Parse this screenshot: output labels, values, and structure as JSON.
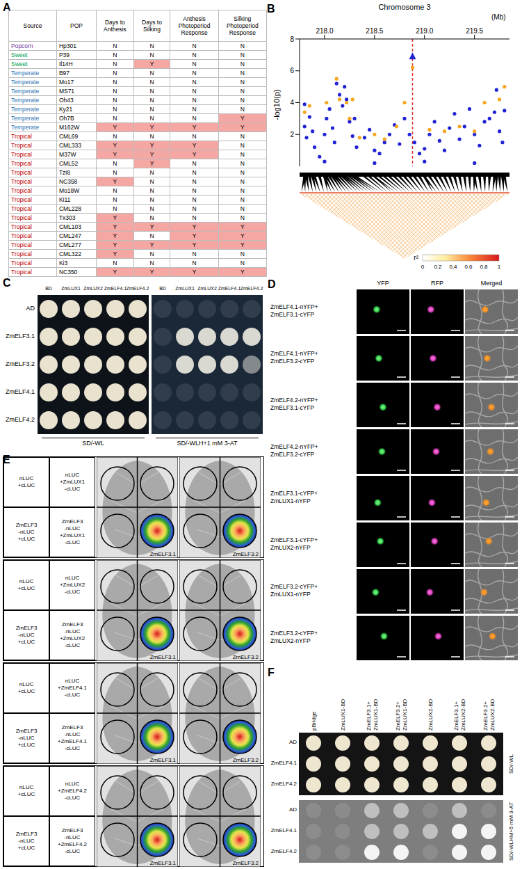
{
  "chart_data": {
    "type": "scatter",
    "letter": "B",
    "title": "Chromosome 3",
    "x_label": "(Mb)",
    "y_label": "-log10(p)",
    "xlim": [
      217.75,
      219.85
    ],
    "xticks": [
      {
        "value": 218,
        "label": "218.0"
      },
      {
        "value": 218.5,
        "label": "218.5"
      },
      {
        "value": 219,
        "label": "219.0"
      },
      {
        "value": 219.5,
        "label": "219.5"
      }
    ],
    "ylim": [
      0,
      8
    ],
    "yticks": [
      0,
      2,
      4,
      6,
      8
    ],
    "series": [
      {
        "color": "#2323d6",
        "marker": "circle",
        "x": [
          217.8,
          217.8,
          217.82,
          217.85,
          217.88,
          217.9,
          217.95,
          218.0,
          218.0,
          218.02,
          218.05,
          218.08,
          218.1,
          218.12,
          218.15,
          218.18,
          218.2,
          218.22,
          218.25,
          218.28,
          218.3,
          218.32,
          218.4,
          218.45,
          218.5,
          218.5,
          218.55,
          218.6,
          218.65,
          218.7,
          218.75,
          218.8,
          218.85,
          218.9,
          218.95,
          219.0,
          219.0,
          219.05,
          219.1,
          219.15,
          219.2,
          219.25,
          219.3,
          219.35,
          219.4,
          219.45,
          219.5,
          219.5,
          219.55,
          219.6,
          219.65,
          219.7,
          219.72,
          219.75,
          219.78,
          219.8
        ],
        "values": [
          3.9,
          2.5,
          1.8,
          3.1,
          2.2,
          1.2,
          0.6,
          2.0,
          0.3,
          3.0,
          3.6,
          2.4,
          1.5,
          5.2,
          4.5,
          3.8,
          5.0,
          4.2,
          2.8,
          1.9,
          3.0,
          1.2,
          1.8,
          2.3,
          1.0,
          0.2,
          0.8,
          1.5,
          2.0,
          2.6,
          1.4,
          3.0,
          2.0,
          1.5,
          0.8,
          1.1,
          0.3,
          2.0,
          2.8,
          1.6,
          1.0,
          2.4,
          3.3,
          1.7,
          2.5,
          3.6,
          2.0,
          0.2,
          1.3,
          2.8,
          3.0,
          3.4,
          4.8,
          2.2,
          1.5,
          3.5
        ]
      },
      {
        "color": "#f5a623",
        "marker": "circle",
        "x": [
          217.8,
          217.85,
          218.02,
          218.12,
          218.15,
          218.22,
          218.25,
          218.28,
          218.35,
          218.5,
          218.6,
          218.72,
          218.8,
          218.88,
          219.05,
          219.2,
          219.35,
          219.5,
          219.6,
          219.75,
          219.8
        ],
        "values": [
          3.4,
          3.8,
          4.0,
          5.5,
          4.2,
          4.0,
          3.0,
          4.2,
          1.8,
          2.0,
          1.7,
          2.5,
          4.0,
          6.2,
          2.3,
          2.2,
          2.5,
          2.2,
          4.0,
          4.2,
          5.0
        ]
      },
      {
        "color": "#2323d6",
        "marker": "triangle",
        "x": [
          218.88
        ],
        "values": [
          6.9
        ]
      }
    ],
    "annotations": [
      {
        "type": "vline",
        "x": 218.88,
        "color": "#e03030",
        "line_style": "dashed"
      }
    ],
    "colorbar": {
      "label": "r²",
      "range": [
        0,
        1
      ],
      "ticks": [
        0,
        0.2,
        0.4,
        0.6,
        0.8,
        1
      ]
    }
  },
  "panels": {
    "A": {
      "letter": "A",
      "header": [
        "Source",
        "POP",
        "Days to Anthesis",
        "Days to Silking",
        "Anthesis Photoperiod Response",
        "Silking Photoperiod Response"
      ],
      "highlight_value": "Y",
      "highlight_color": "#f4a7a3",
      "source_colors": {
        "Popcorn": "#7030a0",
        "Sweet": "#00a050",
        "Temperate": "#2e75b6",
        "Tropical": "#c00000"
      },
      "rows": [
        [
          "Popcorn",
          "Hp301",
          "N",
          "N",
          "N",
          "N"
        ],
        [
          "Sweet",
          "P39",
          "N",
          "N",
          "N",
          "N"
        ],
        [
          "Sweet",
          "Il14H",
          "N",
          "Y",
          "N",
          "N"
        ],
        [
          "Temperate",
          "B97",
          "N",
          "N",
          "N",
          "N"
        ],
        [
          "Temperate",
          "Mo17",
          "N",
          "N",
          "N",
          "N"
        ],
        [
          "Temperate",
          "MS71",
          "N",
          "N",
          "N",
          "N"
        ],
        [
          "Temperate",
          "Oh43",
          "N",
          "N",
          "N",
          "N"
        ],
        [
          "Temperate",
          "Ky21",
          "N",
          "N",
          "N",
          "N"
        ],
        [
          "Temperate",
          "Oh7B",
          "N",
          "N",
          "N",
          "Y"
        ],
        [
          "Temperate",
          "M162W",
          "Y",
          "Y",
          "Y",
          "Y"
        ],
        [
          "Tropical",
          "CML69",
          "N",
          "N",
          "N",
          "N"
        ],
        [
          "Tropical",
          "CML333",
          "Y",
          "Y",
          "Y",
          "N"
        ],
        [
          "Tropical",
          "M37W",
          "Y",
          "Y",
          "Y",
          "N"
        ],
        [
          "Tropical",
          "CML52",
          "N",
          "Y",
          "N",
          "N"
        ],
        [
          "Tropical",
          "Tzi8",
          "N",
          "N",
          "N",
          "N"
        ],
        [
          "Tropical",
          "NC358",
          "Y",
          "N",
          "N",
          "N"
        ],
        [
          "Tropical",
          "Mo18W",
          "N",
          "N",
          "N",
          "N"
        ],
        [
          "Tropical",
          "Ki11",
          "N",
          "N",
          "N",
          "N"
        ],
        [
          "Tropical",
          "CML228",
          "N",
          "N",
          "N",
          "N"
        ],
        [
          "Tropical",
          "Tx303",
          "Y",
          "N",
          "N",
          "N"
        ],
        [
          "Tropical",
          "CML103",
          "Y",
          "Y",
          "Y",
          "Y"
        ],
        [
          "Tropical",
          "CML247",
          "Y",
          "N",
          "Y",
          "Y"
        ],
        [
          "Tropical",
          "CML277",
          "Y",
          "Y",
          "Y",
          "Y"
        ],
        [
          "Tropical",
          "CML322",
          "Y",
          "N",
          "N",
          "N"
        ],
        [
          "Tropical",
          "Ki3",
          "N",
          "N",
          "N",
          "N"
        ],
        [
          "Tropical",
          "NC350",
          "Y",
          "Y",
          "Y",
          "Y"
        ]
      ]
    },
    "C": {
      "letter": "C",
      "columns": [
        "BD",
        "ZmLUX1",
        "ZmLUX2",
        "ZmELF4.1",
        "ZmELF4.2"
      ],
      "rows": [
        "AD",
        "ZmELF3.1",
        "ZmELF3.2",
        "ZmELF4.1",
        "ZmELF4.2"
      ],
      "plates": [
        {
          "label": "SD/-WL",
          "background": "#0e1319",
          "color": "#e9e2cf",
          "growth": [
            [
              2,
              2,
              2,
              2,
              2
            ],
            [
              2,
              2,
              2,
              2,
              2
            ],
            [
              2,
              2,
              2,
              2,
              2
            ],
            [
              2,
              2,
              2,
              2,
              2
            ],
            [
              2,
              2,
              2,
              2,
              2
            ]
          ]
        },
        {
          "label": "SD/-WLH+1 mM 3-AT",
          "background": "#1b2838",
          "color": "#d9d9d2",
          "growth": [
            [
              0,
              0,
              0,
              0,
              0
            ],
            [
              0,
              2,
              2,
              2,
              2
            ],
            [
              0,
              2,
              2,
              2,
              1
            ],
            [
              0,
              0,
              0,
              0,
              0
            ],
            [
              0,
              0,
              0,
              0,
              0
            ]
          ]
        }
      ]
    },
    "D": {
      "letter": "D",
      "columns": [
        "YFP",
        "RFP",
        "Merged"
      ],
      "rows": [
        [
          "ZmELF4.1-nYFP+",
          "ZmELF3.1-cYFP"
        ],
        [
          "ZmELF4.1-nYFP+",
          "ZmELF3.2-cYFP"
        ],
        [
          "ZmELF4.2-nYFP+",
          "ZmELF3.1-cYFP"
        ],
        [
          "ZmELF4.2-nYFP+",
          "ZmELF3.2-cYFP"
        ],
        [
          "ZmELF3.1-cYFP+",
          "ZmLUX1-nYFP"
        ],
        [
          "ZmELF3.1-cYFP+",
          "ZmLUX2-nYFP"
        ],
        [
          "ZmELF3.2-cYFP+",
          "ZmLUX1-nYFP"
        ],
        [
          "ZmELF3.2-cYFP+",
          "ZmLUX2-nYFP"
        ]
      ]
    },
    "E": {
      "letter": "E",
      "leaves": [
        "ZmELF3.1",
        "ZmELF3.2"
      ],
      "rows": [
        [
          [
            "nLUC",
            "+cLUC"
          ],
          [
            "nLUC",
            "+ZmLUX1",
            "-cLUC"
          ],
          [
            "ZmELF3",
            "-nLUC",
            "+cLUC"
          ],
          [
            "ZmELF3",
            "-nLUC",
            "+ZmLUX1",
            "-cLUC"
          ]
        ],
        [
          [
            "nLUC",
            "+cLUC"
          ],
          [
            "nLUC",
            "+ZmLUX2",
            "-cLUC"
          ],
          [
            "ZmELF3",
            "-nLUC",
            "+cLUC"
          ],
          [
            "ZmELF3",
            "-nLUC",
            "+ZmLUX2",
            "-cLUC"
          ]
        ],
        [
          [
            "nLUC",
            "+cLUC"
          ],
          [
            "nLUC",
            "+ZmELF4.1",
            "-cLUC"
          ],
          [
            "ZmELF3",
            "-nLUC",
            "+cLUC"
          ],
          [
            "ZmELF3",
            "-nLUC",
            "+ZmELF4.1",
            "-cLUC"
          ]
        ],
        [
          [
            "nLUC",
            "+cLUC"
          ],
          [
            "nLUC",
            "+ZmELF4.2",
            "-cLUC"
          ],
          [
            "ZmELF3",
            "-nLUC",
            "+cLUC"
          ],
          [
            "ZmELF3",
            "-nLUC",
            "+ZmELF4.2",
            "-cLUC"
          ]
        ]
      ]
    },
    "F": {
      "letter": "F",
      "columns": [
        [
          "pBridge"
        ],
        [
          "ZmLUX1-BD"
        ],
        [
          "ZmELF3.1+",
          "ZmLUX1-BD"
        ],
        [
          "ZmELF3.2+",
          "ZmLUX1-BD"
        ],
        [
          "ZmLUX2-BD"
        ],
        [
          "ZmELF3.1+",
          "ZmLUX2-BD"
        ],
        [
          "ZmELF3.2+",
          "ZmLUX2-BD"
        ]
      ],
      "rows": [
        "AD",
        "ZmELF4.1",
        "ZmELF4.2"
      ],
      "plates": [
        {
          "label": "SD/-WL",
          "background": "#141414",
          "color": "#efe6cf",
          "growth": [
            [
              2,
              2,
              2,
              2,
              2,
              2,
              2
            ],
            [
              2,
              2,
              2,
              2,
              2,
              2,
              2
            ],
            [
              2,
              2,
              2,
              2,
              2,
              2,
              2
            ]
          ]
        },
        {
          "label": "SD/-WLHM+5 mM 3-AT",
          "background": "#7e7e7e",
          "color": "#f4f4f4",
          "growth": [
            [
              0,
              0,
              1,
              1,
              0,
              1,
              0
            ],
            [
              0,
              0,
              1,
              1,
              1,
              2,
              2
            ],
            [
              0,
              0,
              2,
              2,
              0,
              2,
              2
            ]
          ]
        }
      ]
    }
  }
}
